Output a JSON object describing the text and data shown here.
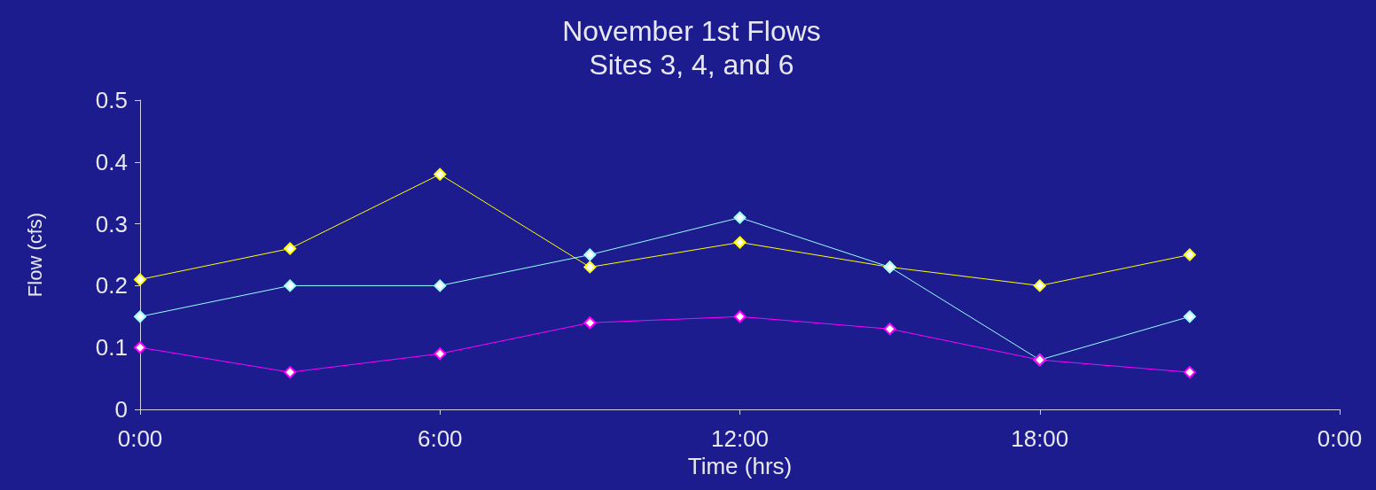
{
  "chart_data": {
    "type": "line",
    "title": "November 1st Flows",
    "subtitle": "Sites 3, 4, and 6",
    "xlabel": "Time (hrs)",
    "ylabel": "Flow (cfs)",
    "x": [
      0,
      3,
      6,
      9,
      12,
      15,
      18,
      21
    ],
    "series": [
      {
        "color": "#ffff00",
        "values": [
          0.21,
          0.26,
          0.38,
          0.23,
          0.27,
          0.23,
          0.2,
          0.25
        ]
      },
      {
        "color": "#99ffff",
        "values": [
          0.15,
          0.2,
          0.2,
          0.25,
          0.31,
          0.23,
          0.08,
          0.15
        ]
      },
      {
        "color": "#ff00ff",
        "values": [
          0.1,
          0.06,
          0.09,
          0.14,
          0.15,
          0.13,
          0.08,
          0.06
        ]
      }
    ],
    "xlim": [
      0,
      24
    ],
    "xticks": [
      {
        "value": 0,
        "label": "0:00"
      },
      {
        "value": 6,
        "label": "6:00"
      },
      {
        "value": 12,
        "label": "12:00"
      },
      {
        "value": 18,
        "label": "18:00"
      },
      {
        "value": 24,
        "label": "0:00"
      }
    ],
    "ylim": [
      0,
      0.5
    ],
    "yticks": [
      0,
      0.1,
      0.2,
      0.3,
      0.4,
      0.5
    ],
    "grid": false,
    "marker": "diamond",
    "line_style": "solid"
  }
}
